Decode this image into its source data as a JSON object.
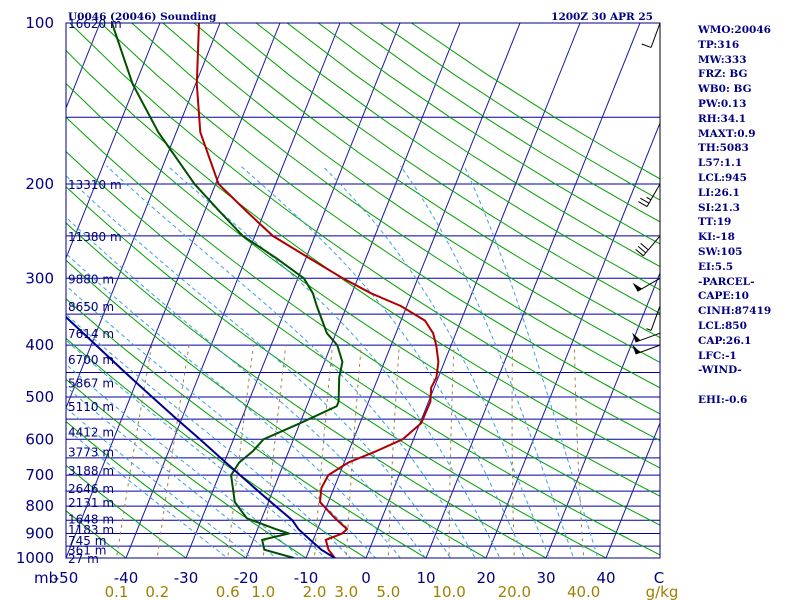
{
  "header": {
    "station_title": "U0046 (20046) Sounding",
    "valid_time": "1200Z 30 APR 25"
  },
  "chart_data": {
    "type": "line",
    "title": "U0046 (20046) Sounding",
    "ylabel": "mb",
    "xlabel_right": "C",
    "mixing_ratio_unit": "g/kg",
    "pressure_range": [
      1000,
      100
    ],
    "temperature_range": [
      -50,
      50
    ],
    "pressure_ticks": [
      100,
      200,
      300,
      400,
      500,
      600,
      700,
      800,
      900,
      1000
    ],
    "temperature_ticks": [
      -50,
      -40,
      -30,
      -20,
      -10,
      0,
      10,
      20,
      30,
      40
    ],
    "mixing_ratio_ticks": [
      0.1,
      0.2,
      0.6,
      1.0,
      2.0,
      3.0,
      5.0,
      10.0,
      20.0,
      40.0
    ],
    "height_levels": [
      {
        "p": 1000,
        "label": "27 m"
      },
      {
        "p": 965,
        "label": "361 m"
      },
      {
        "p": 925,
        "label": "745 m"
      },
      {
        "p": 883,
        "label": "1183 m"
      },
      {
        "p": 843,
        "label": "1648 m"
      },
      {
        "p": 786,
        "label": "2131 m"
      },
      {
        "p": 740,
        "label": "2646 m"
      },
      {
        "p": 685,
        "label": "3188 m"
      },
      {
        "p": 632,
        "label": "3773 m"
      },
      {
        "p": 580,
        "label": "4412 m"
      },
      {
        "p": 520,
        "label": "5110 m"
      },
      {
        "p": 470,
        "label": "5867 m"
      },
      {
        "p": 425,
        "label": "6700 m"
      },
      {
        "p": 380,
        "label": "7614 m"
      },
      {
        "p": 338,
        "label": "8650 m"
      },
      {
        "p": 300,
        "label": "9880 m"
      },
      {
        "p": 250,
        "label": "11380 m"
      },
      {
        "p": 200,
        "label": "13310 m"
      },
      {
        "p": 100,
        "label": "16620 m"
      }
    ],
    "series": [
      {
        "name": "Temperature",
        "color": "#b00000",
        "points": [
          [
            1000,
            -5.2
          ],
          [
            965,
            -6.8
          ],
          [
            925,
            -7.9
          ],
          [
            900,
            -5.6
          ],
          [
            883,
            -5.1
          ],
          [
            843,
            -7.8
          ],
          [
            786,
            -11.4
          ],
          [
            740,
            -12.1
          ],
          [
            700,
            -11.8
          ],
          [
            663,
            -9.3
          ],
          [
            632,
            -5.5
          ],
          [
            600,
            -1.8
          ],
          [
            560,
            0.2
          ],
          [
            510,
            0.3
          ],
          [
            480,
            -0.5
          ],
          [
            460,
            -0.3
          ],
          [
            430,
            -1.0
          ],
          [
            400,
            -2.5
          ],
          [
            380,
            -3.8
          ],
          [
            360,
            -6.0
          ],
          [
            338,
            -11.0
          ],
          [
            320,
            -16.8
          ],
          [
            300,
            -22.5
          ],
          [
            275,
            -29.5
          ],
          [
            250,
            -37.0
          ],
          [
            225,
            -43.0
          ],
          [
            200,
            -49.5
          ],
          [
            160,
            -56.0
          ],
          [
            130,
            -59.8
          ],
          [
            100,
            -63.5
          ]
        ]
      },
      {
        "name": "Dewpoint",
        "color": "#005000",
        "points": [
          [
            1000,
            -12.0
          ],
          [
            965,
            -17.5
          ],
          [
            925,
            -18.5
          ],
          [
            900,
            -14.5
          ],
          [
            883,
            -17.0
          ],
          [
            843,
            -22.5
          ],
          [
            786,
            -25.6
          ],
          [
            700,
            -28.0
          ],
          [
            663,
            -27.5
          ],
          [
            632,
            -26.0
          ],
          [
            600,
            -25.0
          ],
          [
            560,
            -20.0
          ],
          [
            520,
            -15.0
          ],
          [
            510,
            -15.0
          ],
          [
            460,
            -16.5
          ],
          [
            430,
            -17.0
          ],
          [
            400,
            -19.0
          ],
          [
            380,
            -21.5
          ],
          [
            338,
            -25.0
          ],
          [
            320,
            -26.5
          ],
          [
            300,
            -29.0
          ],
          [
            275,
            -35.0
          ],
          [
            250,
            -42.0
          ],
          [
            225,
            -47.5
          ],
          [
            200,
            -53.5
          ],
          [
            160,
            -63.0
          ],
          [
            130,
            -70.5
          ],
          [
            100,
            -78.0
          ]
        ]
      },
      {
        "name": "Parcel",
        "color": "#000090",
        "points": [
          [
            1000,
            -5.2
          ],
          [
            965,
            -8.0
          ],
          [
            925,
            -10.5
          ],
          [
            883,
            -13.2
          ],
          [
            850,
            -14.8
          ],
          [
            800,
            -18.5
          ],
          [
            750,
            -22.4
          ],
          [
            700,
            -26.5
          ],
          [
            650,
            -30.9
          ],
          [
            600,
            -35.6
          ],
          [
            550,
            -40.8
          ],
          [
            500,
            -46.4
          ],
          [
            450,
            -52.5
          ],
          [
            400,
            -59.2
          ],
          [
            350,
            -66.8
          ],
          [
            300,
            -75.2
          ],
          [
            250,
            -84.5
          ],
          [
            200,
            -94.5
          ],
          [
            150,
            -105.5
          ],
          [
            125,
            -111.0
          ]
        ]
      }
    ],
    "wind_barbs": [
      {
        "p": 100,
        "dir": 200,
        "spd": 10
      },
      {
        "p": 200,
        "dir": 210,
        "spd": 25
      },
      {
        "p": 250,
        "dir": 220,
        "spd": 30
      },
      {
        "p": 300,
        "dir": 240,
        "spd": 50
      },
      {
        "p": 338,
        "dir": 200,
        "spd": 5
      },
      {
        "p": 380,
        "dir": 250,
        "spd": 50
      },
      {
        "p": 400,
        "dir": 250,
        "spd": 50
      }
    ]
  },
  "parameters": [
    "WMO:20046",
    "TP:316",
    "MW:333",
    "FRZ: BG",
    "WB0: BG",
    "PW:0.13",
    "RH:34.1",
    "MAXT:0.9",
    "TH:5083",
    "L57:1.1",
    "LCL:945",
    "LI:26.1",
    "SI:21.3",
    "TT:19",
    "KI:-18",
    "SW:105",
    "EI:5.5",
    "-PARCEL-",
    "CAPE:10",
    "CINH:87419",
    "LCL:850",
    "CAP:26.1",
    "LFC:-1",
    "-WIND-",
    "",
    "EHI:-0.6"
  ],
  "colors": {
    "frame": "#000080",
    "isobar": "#0000a0",
    "isotherm": "#1a1aa0",
    "dry_adiabat": "#00a000",
    "moist_adiabat": "#40a0e0",
    "mixing_ratio": "#a08040"
  }
}
